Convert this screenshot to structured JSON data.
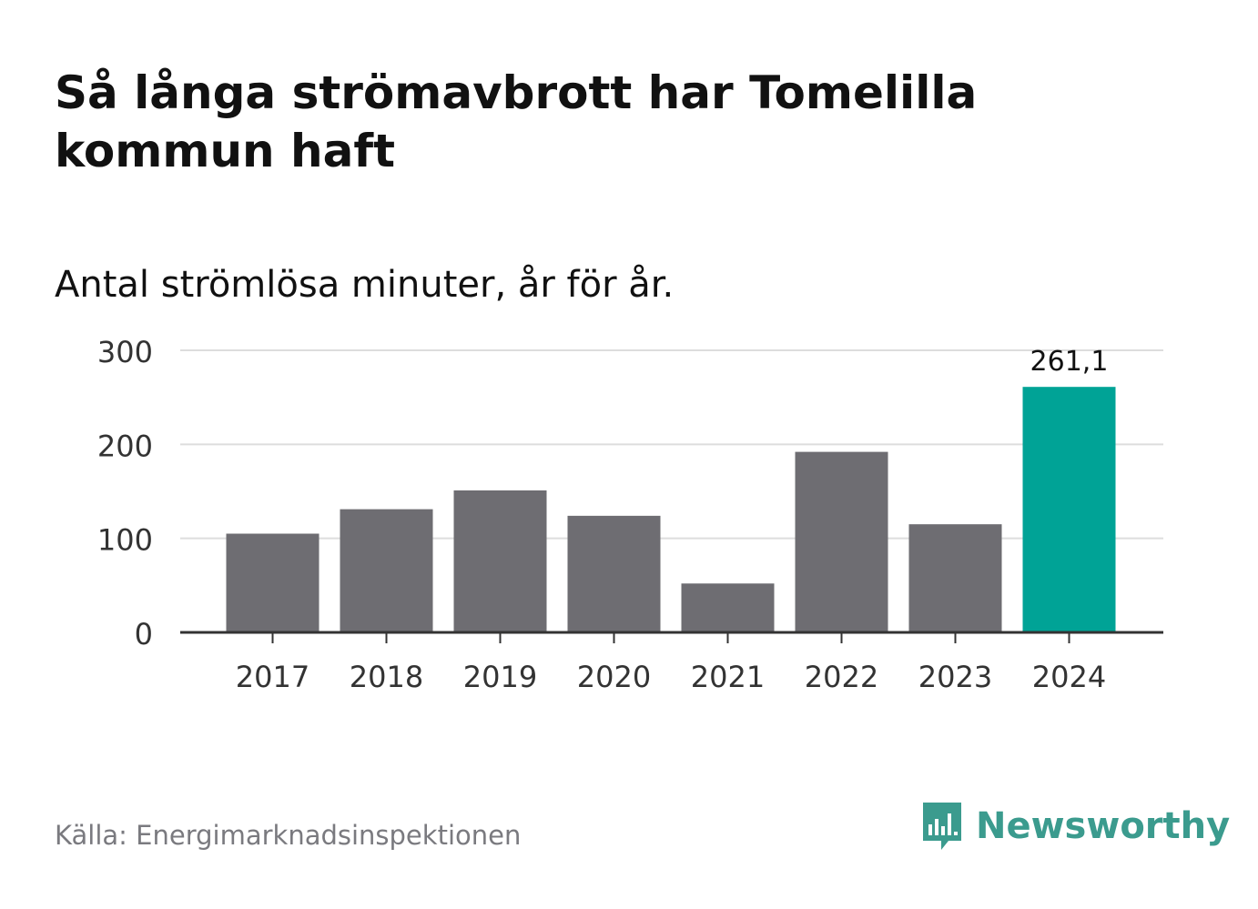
{
  "title": "Så långa strömavbrott har Tomelilla kommun haft",
  "subtitle": "Antal strömlösa minuter, år för år.",
  "source": "Källa: Energimarknadsinspektionen",
  "brand": {
    "name": "Newsworthy",
    "icon": "newsworthy-logo-icon",
    "color": "#3b9b8e"
  },
  "colors": {
    "bar_default": "#6e6d72",
    "bar_highlight": "#00a396",
    "grid": "#dddddd",
    "axis": "#333333",
    "text": "#111111"
  },
  "chart_data": {
    "type": "bar",
    "title": "Så långa strömavbrott har Tomelilla kommun haft",
    "subtitle": "Antal strömlösa minuter, år för år.",
    "categories": [
      "2017",
      "2018",
      "2019",
      "2020",
      "2021",
      "2022",
      "2023",
      "2024"
    ],
    "values": [
      105,
      131,
      151,
      124,
      52,
      192,
      115,
      261.1
    ],
    "highlight_index": 7,
    "data_labels": [
      "",
      "",
      "",
      "",
      "",
      "",
      "",
      "261,1"
    ],
    "ylim": [
      0,
      300
    ],
    "yticks": [
      0,
      100,
      200,
      300
    ],
    "ytick_labels": [
      "0",
      "100",
      "200",
      "300"
    ],
    "xlabel": "",
    "ylabel": "",
    "grid": true
  }
}
